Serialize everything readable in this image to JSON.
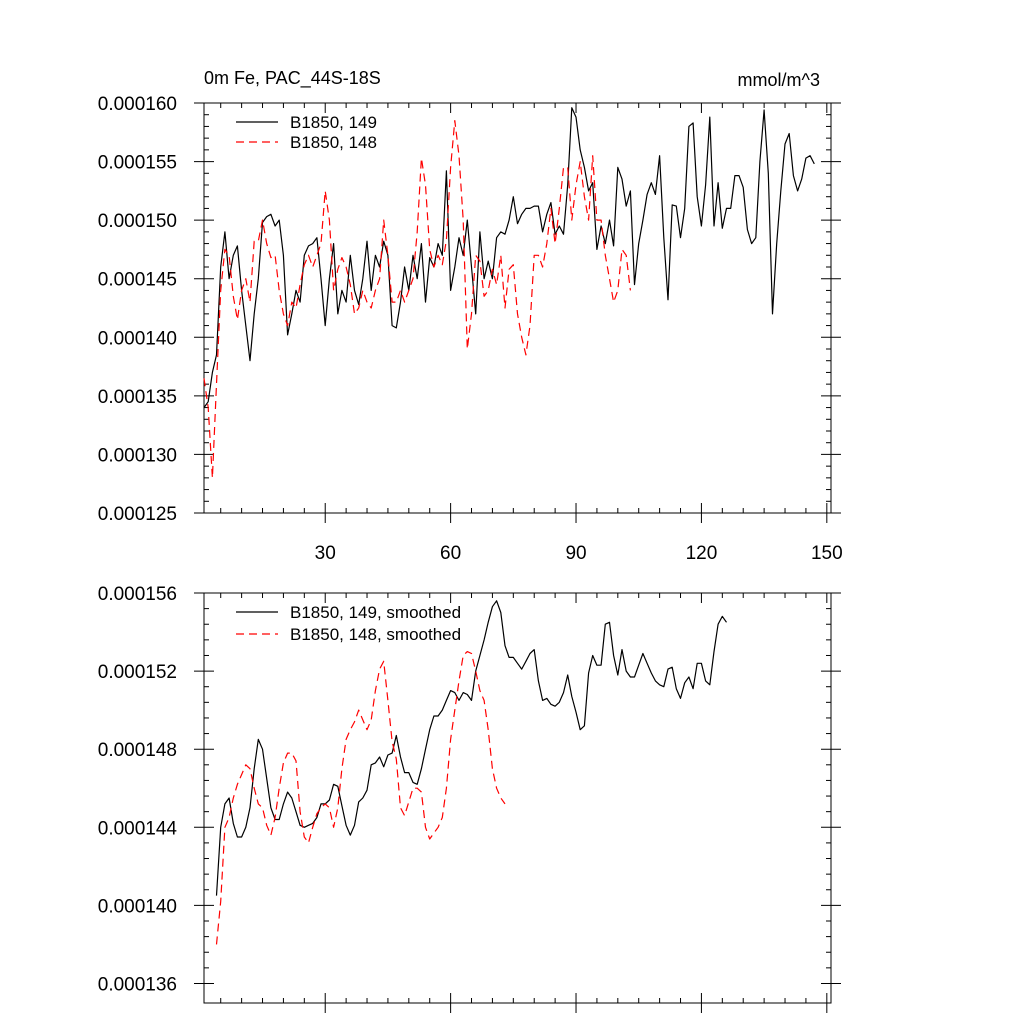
{
  "chart_data": [
    {
      "type": "line",
      "title": "0m Fe, PAC_44S-18S",
      "units": "mmol/m^3",
      "xlabel": "",
      "ylabel": "",
      "xlim": [
        1,
        151
      ],
      "ylim": [
        0.000125,
        0.00016
      ],
      "xticks": [
        30,
        60,
        90,
        120,
        150
      ],
      "xtick_labels": [
        "30",
        "60",
        "90",
        "120",
        "150"
      ],
      "yticks": [
        0.000125,
        0.00013,
        0.000135,
        0.00014,
        0.000145,
        0.00015,
        0.000155,
        0.00016
      ],
      "ytick_labels": [
        "0.000125",
        "0.000130",
        "0.000135",
        "0.000140",
        "0.000145",
        "0.000150",
        "0.000155",
        "0.000160"
      ],
      "legend": "top-left",
      "series": [
        {
          "name": "B1850, 149",
          "color": "#000000",
          "dash": "solid",
          "x_start": 1,
          "values": [
            0.000134,
            0.0001345,
            0.000137,
            0.0001385,
            0.000146,
            0.000149,
            0.000145,
            0.000147,
            0.0001478,
            0.000144,
            0.000141,
            0.000138,
            0.000142,
            0.000145,
            0.0001498,
            0.0001503,
            0.0001505,
            0.0001495,
            0.00015,
            0.000147,
            0.0001402,
            0.000142,
            0.000144,
            0.000143,
            0.000147,
            0.0001478,
            0.000148,
            0.0001485,
            0.000145,
            0.000141,
            0.000145,
            0.000148,
            0.000142,
            0.000144,
            0.000143,
            0.000147,
            0.000144,
            0.0001428,
            0.000145,
            0.0001482,
            0.000144,
            0.000147,
            0.000146,
            0.0001482,
            0.000147,
            0.000141,
            0.0001408,
            0.000143,
            0.000146,
            0.000144,
            0.000147,
            0.000145,
            0.000148,
            0.000143,
            0.0001468,
            0.000146,
            0.000148,
            0.000147,
            0.0001542,
            0.000144,
            0.000146,
            0.0001485,
            0.000147,
            0.00015,
            0.000146,
            0.000142,
            0.000149,
            0.000145,
            0.0001465,
            0.000145,
            0.0001485,
            0.000149,
            0.0001488,
            0.00015,
            0.000152,
            0.0001497,
            0.0001505,
            0.000151,
            0.000151,
            0.0001512,
            0.0001512,
            0.000149,
            0.0001505,
            0.0001515,
            0.0001488,
            0.0001495,
            0.0001488,
            0.000153,
            0.0001596,
            0.0001588,
            0.000156,
            0.0001545,
            0.0001525,
            0.0001532,
            0.0001475,
            0.0001495,
            0.000148,
            0.00015,
            0.0001478,
            0.0001545,
            0.0001535,
            0.0001512,
            0.0001525,
            0.0001445,
            0.000148,
            0.00015,
            0.0001522,
            0.0001532,
            0.0001522,
            0.0001555,
            0.0001485,
            0.0001432,
            0.0001513,
            0.0001512,
            0.0001485,
            0.000151,
            0.000158,
            0.0001583,
            0.000152,
            0.0001495,
            0.000153,
            0.0001588,
            0.0001495,
            0.0001532,
            0.0001493,
            0.000151,
            0.000151,
            0.0001538,
            0.0001538,
            0.0001528,
            0.0001492,
            0.000148,
            0.0001485,
            0.000155,
            0.0001594,
            0.000154,
            0.000142,
            0.000148,
            0.0001525,
            0.0001565,
            0.0001574,
            0.0001538,
            0.0001525,
            0.0001535,
            0.0001553,
            0.0001555,
            0.0001548
          ]
        },
        {
          "name": "B1850, 148",
          "color": "#ff0000",
          "dash": "dashed",
          "x_start": 1,
          "values": [
            0.0001365,
            0.000134,
            0.000128,
            0.000136,
            0.000144,
            0.0001475,
            0.000147,
            0.0001435,
            0.0001415,
            0.000144,
            0.000145,
            0.000143,
            0.0001482,
            0.0001482,
            0.00015,
            0.000148,
            0.0001468,
            0.000147,
            0.000144,
            0.000142,
            0.000141,
            0.000143,
            0.0001425,
            0.0001445,
            0.0001462,
            0.000147,
            0.000146,
            0.000147,
            0.000148,
            0.0001525,
            0.00015,
            0.000144,
            0.0001458,
            0.0001468,
            0.000146,
            0.0001445,
            0.000142,
            0.0001425,
            0.000144,
            0.000143,
            0.0001425,
            0.000144,
            0.000145,
            0.00015,
            0.000147,
            0.000143,
            0.000143,
            0.000144,
            0.000143,
            0.000144,
            0.000145,
            0.000149,
            0.0001553,
            0.000153,
            0.0001475,
            0.000146,
            0.000147,
            0.0001462,
            0.0001483,
            0.0001545,
            0.0001585,
            0.0001555,
            0.00015,
            0.000139,
            0.000142,
            0.000147,
            0.0001465,
            0.0001435,
            0.000144,
            0.0001458,
            0.0001445,
            0.000147,
            0.0001425,
            0.0001458,
            0.0001462,
            0.000142,
            0.00014,
            0.0001385,
            0.000141,
            0.000147,
            0.000147,
            0.000146,
            0.000148,
            0.000151,
            0.000148,
            0.000151,
            0.0001545,
            0.0001545,
            0.00015,
            0.000153,
            0.000155,
            0.000152,
            0.00015,
            0.0001555,
            0.00015,
            0.00015,
            0.000147,
            0.000145,
            0.000143,
            0.000144,
            0.0001475,
            0.000147,
            0.000144
          ]
        }
      ]
    },
    {
      "type": "line",
      "title": "",
      "xlabel": "",
      "ylabel": "",
      "xlim": [
        1,
        151
      ],
      "ylim": [
        0.000135,
        0.000156
      ],
      "xticks": [
        30,
        60,
        90,
        120,
        150
      ],
      "yticks": [
        0.000136,
        0.00014,
        0.000144,
        0.000148,
        0.000152,
        0.000156
      ],
      "ytick_labels": [
        "0.000136",
        "0.000140",
        "0.000144",
        "0.000148",
        "0.000152",
        "0.000156"
      ],
      "legend": "top-left",
      "series": [
        {
          "name": "B1850, 149, smoothed",
          "color": "#000000",
          "dash": "solid",
          "x_start": 4,
          "values": [
            0.0001405,
            0.000144,
            0.0001452,
            0.0001455,
            0.0001442,
            0.0001435,
            0.0001435,
            0.000144,
            0.000145,
            0.000147,
            0.0001485,
            0.000148,
            0.0001465,
            0.000145,
            0.0001444,
            0.0001444,
            0.0001452,
            0.0001458,
            0.0001455,
            0.0001448,
            0.0001441,
            0.000144,
            0.0001441,
            0.0001442,
            0.0001445,
            0.0001452,
            0.0001452,
            0.0001454,
            0.0001462,
            0.0001461,
            0.0001451,
            0.0001441,
            0.0001436,
            0.0001441,
            0.0001453,
            0.0001455,
            0.0001459,
            0.0001472,
            0.0001473,
            0.0001476,
            0.0001471,
            0.0001477,
            0.0001478,
            0.0001487,
            0.0001476,
            0.0001468,
            0.0001468,
            0.0001463,
            0.0001462,
            0.000147,
            0.000148,
            0.000149,
            0.0001497,
            0.0001497,
            0.00015,
            0.0001505,
            0.000151,
            0.0001509,
            0.0001505,
            0.0001509,
            0.0001508,
            0.0001505,
            0.000152,
            0.0001528,
            0.0001536,
            0.0001545,
            0.0001553,
            0.0001556,
            0.000155,
            0.0001533,
            0.0001527,
            0.0001527,
            0.0001524,
            0.0001521,
            0.0001525,
            0.0001529,
            0.0001531,
            0.0001515,
            0.0001505,
            0.0001506,
            0.0001503,
            0.0001502,
            0.0001504,
            0.0001509,
            0.0001518,
            0.0001507,
            0.0001499,
            0.000149,
            0.0001492,
            0.0001519,
            0.0001528,
            0.0001523,
            0.0001523,
            0.0001544,
            0.0001545,
            0.0001528,
            0.0001518,
            0.0001531,
            0.000152,
            0.0001517,
            0.0001517,
            0.0001523,
            0.0001529,
            0.0001524,
            0.0001519,
            0.0001515,
            0.0001513,
            0.0001512,
            0.0001521,
            0.0001522,
            0.0001511,
            0.0001506,
            0.0001514,
            0.0001517,
            0.0001511,
            0.0001524,
            0.0001524,
            0.0001515,
            0.0001513,
            0.000153,
            0.0001544,
            0.0001548,
            0.0001545
          ]
        },
        {
          "name": "B1850, 148, smoothed",
          "color": "#ff0000",
          "dash": "dashed",
          "x_start": 4,
          "values": [
            0.000138,
            0.0001402,
            0.000144,
            0.0001445,
            0.0001455,
            0.0001462,
            0.0001467,
            0.0001472,
            0.000147,
            0.000146,
            0.0001452,
            0.000145,
            0.0001441,
            0.0001436,
            0.0001445,
            0.000146,
            0.0001473,
            0.0001478,
            0.0001478,
            0.0001474,
            0.0001448,
            0.0001435,
            0.0001432,
            0.000144,
            0.0001447,
            0.000145,
            0.0001452,
            0.000145,
            0.000144,
            0.000145,
            0.000147,
            0.0001485,
            0.000149,
            0.0001494,
            0.00015,
            0.0001495,
            0.000149,
            0.0001495,
            0.000151,
            0.0001521,
            0.0001525,
            0.0001505,
            0.0001484,
            0.0001475,
            0.000145,
            0.0001446,
            0.0001453,
            0.000146,
            0.000146,
            0.0001458,
            0.000144,
            0.0001434,
            0.0001437,
            0.000144,
            0.0001445,
            0.000146,
            0.0001485,
            0.00015,
            0.0001515,
            0.0001528,
            0.000153,
            0.0001529,
            0.000152,
            0.000151,
            0.0001505,
            0.000149,
            0.000147,
            0.000146,
            0.0001455,
            0.0001452
          ]
        }
      ]
    }
  ]
}
